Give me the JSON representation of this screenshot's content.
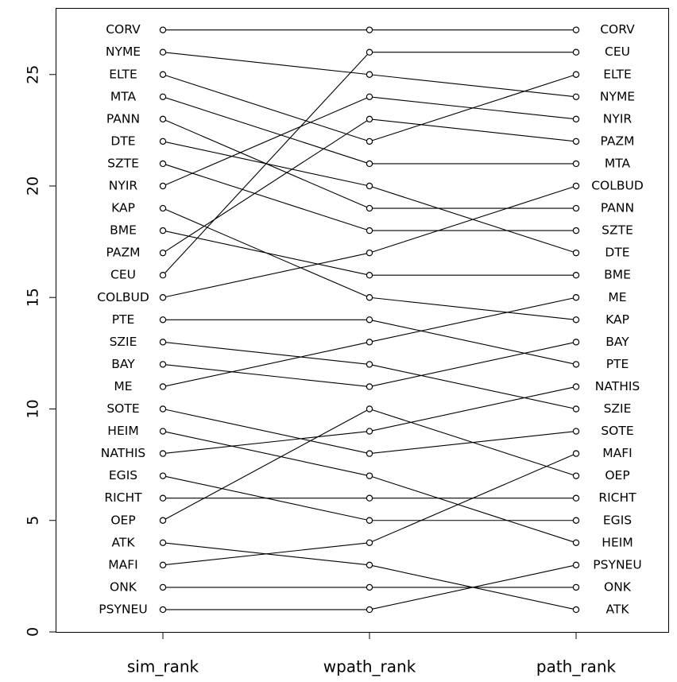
{
  "chart_data": {
    "type": "line",
    "title": "",
    "xlabel": "",
    "ylabel": "",
    "categories": [
      "sim_rank",
      "wpath_rank",
      "path_rank"
    ],
    "ylim": [
      0,
      27.5
    ],
    "y_ticks": [
      0,
      5,
      10,
      15,
      20,
      25
    ],
    "y_tick_labels": [
      "0",
      "5",
      "10",
      "15",
      "20",
      "25"
    ],
    "grid": false,
    "legend": "none",
    "series": [
      {
        "name": "CORV",
        "values": [
          27,
          27,
          27
        ]
      },
      {
        "name": "NYME",
        "values": [
          26,
          25,
          24
        ]
      },
      {
        "name": "ELTE",
        "values": [
          25,
          22,
          25
        ]
      },
      {
        "name": "MTA",
        "values": [
          24,
          21,
          21
        ]
      },
      {
        "name": "PANN",
        "values": [
          23,
          19,
          19
        ]
      },
      {
        "name": "DTE",
        "values": [
          22,
          20,
          17
        ]
      },
      {
        "name": "SZTE",
        "values": [
          21,
          18,
          18
        ]
      },
      {
        "name": "NYIR",
        "values": [
          20,
          24,
          23
        ]
      },
      {
        "name": "KAP",
        "values": [
          19,
          15,
          14
        ]
      },
      {
        "name": "BME",
        "values": [
          18,
          16,
          16
        ]
      },
      {
        "name": "PAZM",
        "values": [
          17,
          23,
          22
        ]
      },
      {
        "name": "CEU",
        "values": [
          16,
          26,
          26
        ]
      },
      {
        "name": "COLBUD",
        "values": [
          15,
          17,
          20
        ]
      },
      {
        "name": "PTE",
        "values": [
          14,
          14,
          12
        ]
      },
      {
        "name": "SZIE",
        "values": [
          13,
          12,
          10
        ]
      },
      {
        "name": "BAY",
        "values": [
          12,
          11,
          13
        ]
      },
      {
        "name": "ME",
        "values": [
          11,
          13,
          15
        ]
      },
      {
        "name": "SOTE",
        "values": [
          10,
          8,
          9
        ]
      },
      {
        "name": "HEIM",
        "values": [
          9,
          7,
          4
        ]
      },
      {
        "name": "NATHIS",
        "values": [
          8,
          9,
          11
        ]
      },
      {
        "name": "EGIS",
        "values": [
          7,
          5,
          5
        ]
      },
      {
        "name": "RICHT",
        "values": [
          6,
          6,
          6
        ]
      },
      {
        "name": "OEP",
        "values": [
          5,
          10,
          7
        ]
      },
      {
        "name": "ATK",
        "values": [
          4,
          3,
          1
        ]
      },
      {
        "name": "MAFI",
        "values": [
          3,
          4,
          8
        ]
      },
      {
        "name": "ONK",
        "values": [
          2,
          2,
          2
        ]
      },
      {
        "name": "PSYNEU",
        "values": [
          1,
          1,
          3
        ]
      }
    ]
  }
}
